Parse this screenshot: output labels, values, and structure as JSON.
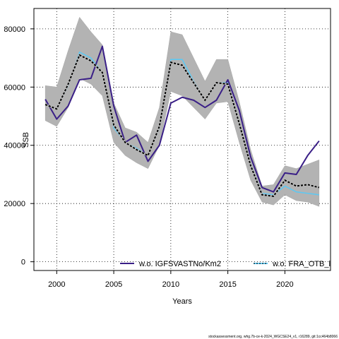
{
  "chart_data": {
    "type": "line",
    "title": "",
    "xlabel": "Years",
    "ylabel": "SSB",
    "xlim": [
      1998,
      2024
    ],
    "ylim": [
      -3000,
      87000
    ],
    "xticks": [
      2000,
      2005,
      2010,
      2015,
      2020
    ],
    "yticks": [
      0,
      20000,
      40000,
      60000,
      80000
    ],
    "grid": true,
    "x": [
      1999,
      2000,
      2001,
      2002,
      2003,
      2004,
      2005,
      2006,
      2007,
      2008,
      2009,
      2010,
      2011,
      2012,
      2013,
      2014,
      2015,
      2016,
      2017,
      2018,
      2019,
      2020,
      2021,
      2022,
      2023
    ],
    "band": {
      "lower": [
        48500,
        46500,
        53000,
        63000,
        61000,
        57000,
        41000,
        36500,
        34000,
        32000,
        40000,
        58500,
        57000,
        53000,
        49000,
        54500,
        55000,
        41000,
        28000,
        20500,
        19500,
        23000,
        21000,
        20500,
        19000
      ],
      "upper": [
        60500,
        60000,
        72500,
        84000,
        79000,
        74500,
        54500,
        46000,
        44500,
        41000,
        53000,
        79000,
        78000,
        70000,
        62000,
        69500,
        69500,
        55000,
        38500,
        26000,
        26500,
        33000,
        32000,
        33500,
        35000
      ]
    },
    "series": [
      {
        "name": "w.o. IGFSVASTNo/Km2",
        "color": "#3a1f87",
        "style": "solid",
        "values": [
          55800,
          49000,
          53500,
          62500,
          63000,
          74000,
          53500,
          41000,
          43500,
          34500,
          40000,
          54500,
          56500,
          55500,
          53000,
          55500,
          62500,
          52000,
          36000,
          25500,
          24000,
          30500,
          30000,
          36500,
          41500
        ]
      },
      {
        "name": "w.o. FRA_OTB_lp",
        "color": "#5ec8f2",
        "style": "solid",
        "values": [
          54000,
          52500,
          60500,
          72000,
          70000,
          65000,
          46000,
          41000,
          39000,
          36500,
          46000,
          69500,
          69500,
          62000,
          55500,
          61500,
          61500,
          48000,
          33500,
          23500,
          23000,
          26000,
          24000,
          23500,
          23000
        ]
      },
      {
        "name": "",
        "color": "#000000",
        "style": "dashed",
        "values": [
          54000,
          52500,
          61000,
          71000,
          69000,
          65000,
          47000,
          41000,
          38500,
          36500,
          46500,
          68500,
          67500,
          61500,
          55500,
          61500,
          61000,
          47500,
          33000,
          23000,
          22500,
          28000,
          26000,
          26500,
          25500
        ]
      }
    ],
    "legend": {
      "placement": "bottom",
      "items": [
        "w.o. IGFSVASTNo/Km2",
        "w.o. FRA_OTB_lp"
      ]
    }
  },
  "credit": "stockassessment.org, whg.7b-ce-k-2024_WGCSE24_v1, r16289, git:1cc464b8066"
}
